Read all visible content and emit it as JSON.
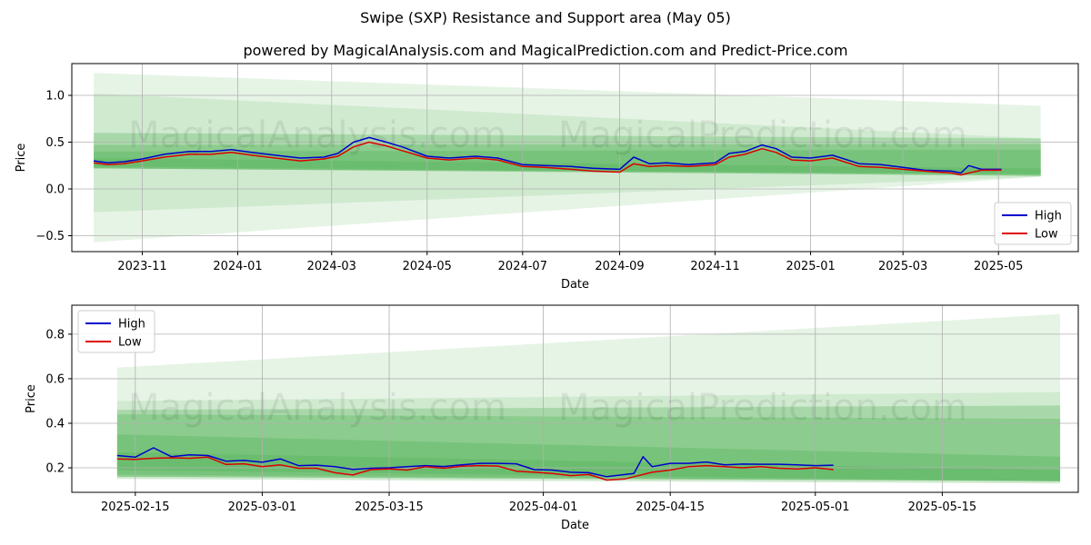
{
  "title": "Swipe (SXP) Resistance and Support area (May 05)",
  "subtitle": "powered by MagicalAnalysis.com and MagicalPrediction.com and Predict-Price.com",
  "watermarks": [
    "MagicalAnalysis.com",
    "MagicalPrediction.com"
  ],
  "colors": {
    "high": "#0000cc",
    "low": "#dd0000",
    "band": "#4caf50"
  },
  "chart_data": [
    {
      "type": "line",
      "xlabel": "Date",
      "ylabel": "Price",
      "xlim": [
        "2023-09-17",
        "2025-06-21"
      ],
      "ylim": [
        -0.67,
        1.34
      ],
      "yticks": [
        -0.5,
        0.0,
        0.5,
        1.0
      ],
      "ytick_labels": [
        "−0.5",
        "0.0",
        "0.5",
        "1.0"
      ],
      "xticks": [
        "2023-11-01",
        "2024-01-01",
        "2024-03-01",
        "2024-05-01",
        "2024-07-01",
        "2024-09-01",
        "2024-11-01",
        "2025-01-01",
        "2025-03-01",
        "2025-05-01"
      ],
      "xtick_labels": [
        "2023-11",
        "2024-01",
        "2024-03",
        "2024-05",
        "2024-07",
        "2024-09",
        "2024-11",
        "2025-01",
        "2025-03",
        "2025-05"
      ],
      "grid": true,
      "legend": {
        "position": "bottom-right",
        "entries": [
          "High",
          "Low"
        ]
      },
      "bands": [
        {
          "x": [
            "2023-10-01",
            "2025-05-28"
          ],
          "upper": [
            1.24,
            0.89
          ],
          "lower": [
            -0.57,
            0.13
          ],
          "opacity": 0.14
        },
        {
          "x": [
            "2023-10-01",
            "2025-05-28"
          ],
          "upper": [
            1.02,
            0.54
          ],
          "lower": [
            -0.25,
            0.13
          ],
          "opacity": 0.14
        },
        {
          "x": [
            "2023-10-01",
            "2025-05-28"
          ],
          "upper": [
            0.6,
            0.54
          ],
          "lower": [
            0.22,
            0.14
          ],
          "opacity": 0.3
        },
        {
          "x": [
            "2023-10-01",
            "2025-05-28"
          ],
          "upper": [
            0.47,
            0.48
          ],
          "lower": [
            0.22,
            0.14
          ],
          "opacity": 0.3
        },
        {
          "x": [
            "2023-10-01",
            "2025-05-28"
          ],
          "upper": [
            0.4,
            0.42
          ],
          "lower": [
            0.22,
            0.16
          ],
          "opacity": 0.3
        },
        {
          "x": [
            "2023-10-01",
            "2025-05-28"
          ],
          "upper": [
            0.33,
            0.22
          ],
          "lower": [
            0.24,
            0.15
          ],
          "opacity": 0.3
        }
      ],
      "series": [
        {
          "name": "High",
          "x": [
            "2023-10-01",
            "2023-10-10",
            "2023-10-20",
            "2023-11-01",
            "2023-11-15",
            "2023-12-01",
            "2023-12-15",
            "2023-12-28",
            "2024-01-10",
            "2024-01-25",
            "2024-02-10",
            "2024-02-25",
            "2024-03-05",
            "2024-03-15",
            "2024-03-25",
            "2024-04-05",
            "2024-04-15",
            "2024-05-01",
            "2024-05-15",
            "2024-06-01",
            "2024-06-15",
            "2024-07-01",
            "2024-07-15",
            "2024-08-01",
            "2024-08-15",
            "2024-09-01",
            "2024-09-10",
            "2024-09-20",
            "2024-10-01",
            "2024-10-15",
            "2024-11-01",
            "2024-11-10",
            "2024-11-20",
            "2024-12-01",
            "2024-12-10",
            "2024-12-20",
            "2025-01-01",
            "2025-01-15",
            "2025-02-01",
            "2025-02-15",
            "2025-03-01",
            "2025-03-15",
            "2025-04-01",
            "2025-04-07",
            "2025-04-12",
            "2025-04-20",
            "2025-05-03"
          ],
          "y": [
            0.3,
            0.28,
            0.29,
            0.32,
            0.37,
            0.4,
            0.4,
            0.42,
            0.39,
            0.36,
            0.33,
            0.34,
            0.38,
            0.5,
            0.55,
            0.5,
            0.45,
            0.35,
            0.33,
            0.35,
            0.33,
            0.26,
            0.25,
            0.24,
            0.22,
            0.21,
            0.34,
            0.27,
            0.28,
            0.26,
            0.28,
            0.38,
            0.4,
            0.47,
            0.43,
            0.34,
            0.33,
            0.36,
            0.27,
            0.26,
            0.23,
            0.2,
            0.19,
            0.17,
            0.25,
            0.21,
            0.21
          ]
        },
        {
          "name": "Low",
          "x": [
            "2023-10-01",
            "2023-10-10",
            "2023-10-20",
            "2023-11-01",
            "2023-11-15",
            "2023-12-01",
            "2023-12-15",
            "2023-12-28",
            "2024-01-10",
            "2024-01-25",
            "2024-02-10",
            "2024-02-25",
            "2024-03-05",
            "2024-03-15",
            "2024-03-25",
            "2024-04-05",
            "2024-04-15",
            "2024-05-01",
            "2024-05-15",
            "2024-06-01",
            "2024-06-15",
            "2024-07-01",
            "2024-07-15",
            "2024-08-01",
            "2024-08-15",
            "2024-09-01",
            "2024-09-10",
            "2024-09-20",
            "2024-10-01",
            "2024-10-15",
            "2024-11-01",
            "2024-11-10",
            "2024-11-20",
            "2024-12-01",
            "2024-12-10",
            "2024-12-20",
            "2025-01-01",
            "2025-01-15",
            "2025-02-01",
            "2025-02-15",
            "2025-03-01",
            "2025-03-15",
            "2025-04-01",
            "2025-04-07",
            "2025-04-12",
            "2025-04-20",
            "2025-05-03"
          ],
          "y": [
            0.28,
            0.26,
            0.27,
            0.3,
            0.34,
            0.37,
            0.37,
            0.39,
            0.36,
            0.33,
            0.3,
            0.32,
            0.35,
            0.45,
            0.5,
            0.46,
            0.41,
            0.33,
            0.31,
            0.33,
            0.31,
            0.24,
            0.23,
            0.21,
            0.19,
            0.18,
            0.27,
            0.24,
            0.25,
            0.24,
            0.26,
            0.34,
            0.37,
            0.43,
            0.39,
            0.31,
            0.3,
            0.33,
            0.24,
            0.23,
            0.21,
            0.19,
            0.17,
            0.15,
            0.17,
            0.2,
            0.2
          ]
        }
      ]
    },
    {
      "type": "line",
      "xlabel": "Date",
      "ylabel": "Price",
      "xlim": [
        "2025-02-08",
        "2025-05-30"
      ],
      "ylim": [
        0.09,
        0.93
      ],
      "yticks": [
        0.2,
        0.4,
        0.6,
        0.8
      ],
      "ytick_labels": [
        "0.2",
        "0.4",
        "0.6",
        "0.8"
      ],
      "xticks": [
        "2025-02-15",
        "2025-03-01",
        "2025-03-15",
        "2025-04-01",
        "2025-04-15",
        "2025-05-01",
        "2025-05-15"
      ],
      "xtick_labels": [
        "2025-02-15",
        "2025-03-01",
        "2025-03-15",
        "2025-04-01",
        "2025-04-15",
        "2025-05-01",
        "2025-05-15"
      ],
      "grid": true,
      "legend": {
        "position": "top-left",
        "entries": [
          "High",
          "Low"
        ]
      },
      "bands": [
        {
          "x": [
            "2025-02-13",
            "2025-05-28"
          ],
          "upper": [
            0.65,
            0.89
          ],
          "lower": [
            0.15,
            0.13
          ],
          "opacity": 0.14
        },
        {
          "x": [
            "2025-02-13",
            "2025-05-28"
          ],
          "upper": [
            0.5,
            0.54
          ],
          "lower": [
            0.15,
            0.13
          ],
          "opacity": 0.14
        },
        {
          "x": [
            "2025-02-13",
            "2025-05-28"
          ],
          "upper": [
            0.46,
            0.48
          ],
          "lower": [
            0.16,
            0.14
          ],
          "opacity": 0.3
        },
        {
          "x": [
            "2025-02-13",
            "2025-05-28"
          ],
          "upper": [
            0.44,
            0.42
          ],
          "lower": [
            0.16,
            0.14
          ],
          "opacity": 0.3
        },
        {
          "x": [
            "2025-02-13",
            "2025-05-28"
          ],
          "upper": [
            0.35,
            0.25
          ],
          "lower": [
            0.17,
            0.14
          ],
          "opacity": 0.3
        },
        {
          "x": [
            "2025-02-13",
            "2025-05-28"
          ],
          "upper": [
            0.27,
            0.19
          ],
          "lower": [
            0.19,
            0.14
          ],
          "opacity": 0.3
        }
      ],
      "series": [
        {
          "name": "High",
          "x": [
            "2025-02-13",
            "2025-02-15",
            "2025-02-17",
            "2025-02-19",
            "2025-02-21",
            "2025-02-23",
            "2025-02-25",
            "2025-02-27",
            "2025-03-01",
            "2025-03-03",
            "2025-03-05",
            "2025-03-07",
            "2025-03-09",
            "2025-03-11",
            "2025-03-13",
            "2025-03-15",
            "2025-03-17",
            "2025-03-19",
            "2025-03-21",
            "2025-03-23",
            "2025-03-25",
            "2025-03-27",
            "2025-03-29",
            "2025-03-31",
            "2025-04-02",
            "2025-04-04",
            "2025-04-06",
            "2025-04-08",
            "2025-04-10",
            "2025-04-11",
            "2025-04-12",
            "2025-04-13",
            "2025-04-15",
            "2025-04-17",
            "2025-04-19",
            "2025-04-21",
            "2025-04-23",
            "2025-04-25",
            "2025-04-27",
            "2025-04-29",
            "2025-05-01",
            "2025-05-03"
          ],
          "y": [
            0.255,
            0.248,
            0.29,
            0.25,
            0.258,
            0.255,
            0.23,
            0.233,
            0.225,
            0.24,
            0.21,
            0.212,
            0.205,
            0.193,
            0.198,
            0.2,
            0.205,
            0.21,
            0.206,
            0.213,
            0.22,
            0.22,
            0.218,
            0.192,
            0.19,
            0.18,
            0.178,
            0.16,
            0.17,
            0.175,
            0.25,
            0.205,
            0.22,
            0.22,
            0.226,
            0.213,
            0.217,
            0.216,
            0.216,
            0.213,
            0.21,
            0.212
          ]
        },
        {
          "name": "Low",
          "x": [
            "2025-02-13",
            "2025-02-15",
            "2025-02-17",
            "2025-02-19",
            "2025-02-21",
            "2025-02-23",
            "2025-02-25",
            "2025-02-27",
            "2025-03-01",
            "2025-03-03",
            "2025-03-05",
            "2025-03-07",
            "2025-03-09",
            "2025-03-11",
            "2025-03-13",
            "2025-03-15",
            "2025-03-17",
            "2025-03-19",
            "2025-03-21",
            "2025-03-23",
            "2025-03-25",
            "2025-03-27",
            "2025-03-29",
            "2025-03-31",
            "2025-04-02",
            "2025-04-04",
            "2025-04-06",
            "2025-04-08",
            "2025-04-10",
            "2025-04-11",
            "2025-04-12",
            "2025-04-13",
            "2025-04-15",
            "2025-04-17",
            "2025-04-19",
            "2025-04-21",
            "2025-04-23",
            "2025-04-25",
            "2025-04-27",
            "2025-04-29",
            "2025-05-01",
            "2025-05-03"
          ],
          "y": [
            0.24,
            0.238,
            0.243,
            0.245,
            0.243,
            0.248,
            0.215,
            0.218,
            0.205,
            0.213,
            0.198,
            0.198,
            0.178,
            0.168,
            0.192,
            0.195,
            0.19,
            0.205,
            0.198,
            0.207,
            0.21,
            0.208,
            0.185,
            0.18,
            0.175,
            0.165,
            0.17,
            0.145,
            0.15,
            0.16,
            0.17,
            0.18,
            0.19,
            0.205,
            0.21,
            0.205,
            0.2,
            0.205,
            0.198,
            0.195,
            0.2,
            0.192
          ]
        }
      ]
    }
  ]
}
